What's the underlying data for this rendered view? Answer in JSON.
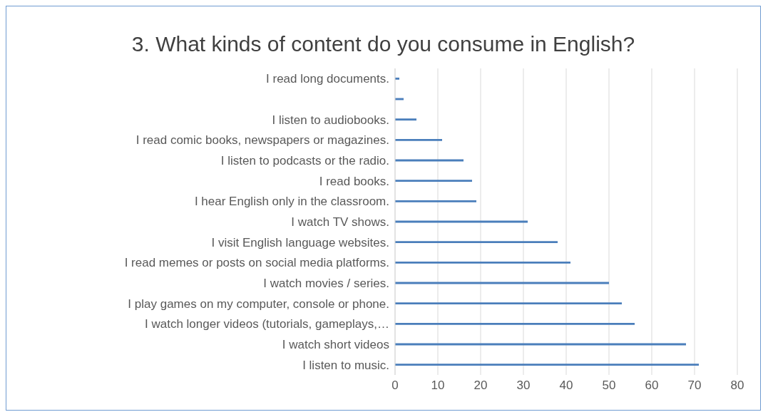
{
  "chart_data": {
    "type": "bar",
    "orientation": "horizontal",
    "title": "3. What kinds of content do you consume in English?",
    "categories": [
      "I read long documents.",
      null,
      "I listen to audiobooks.",
      "I read comic books, newspapers or magazines.",
      "I listen to podcasts or the radio.",
      "I read books.",
      "I hear English only in the classroom.",
      "I watch TV shows.",
      "I visit English language websites.",
      "I read memes or posts on social media platforms.",
      "I watch movies / series.",
      "I play games on my computer, console or phone.",
      "I watch longer videos (tutorials, gameplays,…",
      "I watch short videos",
      "I listen to music."
    ],
    "values": [
      1,
      2,
      5,
      11,
      16,
      18,
      19,
      31,
      38,
      41,
      50,
      53,
      56,
      68,
      71
    ],
    "color": "#4a7ebb",
    "xlim": [
      0,
      80
    ],
    "xticks": [
      0,
      10,
      20,
      30,
      40,
      50,
      60,
      70,
      80
    ],
    "grid": "x",
    "legend": false
  }
}
